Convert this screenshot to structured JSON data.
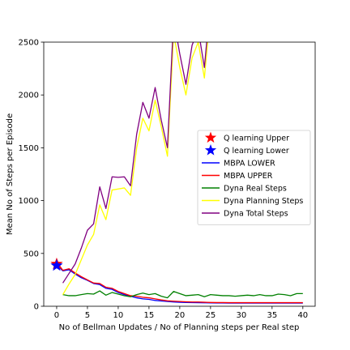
{
  "chart_data": {
    "type": "line",
    "xlabel": "No of Bellman Updates / No of Planning steps per Real step",
    "ylabel": "Mean No of Steps per Episode",
    "xlim": [
      -2.1,
      42.0
    ],
    "ylim": [
      0,
      2500
    ],
    "xticks": [
      0,
      5,
      10,
      15,
      20,
      25,
      30,
      35,
      40
    ],
    "yticks": [
      0,
      500,
      1000,
      1500,
      2000,
      2500
    ],
    "grid": false,
    "legend_position": "center-right",
    "series": [
      {
        "name": "Q learning Upper",
        "kind": "marker",
        "marker": "star",
        "color": "#ff0000",
        "x": [
          0
        ],
        "y": [
          400
        ]
      },
      {
        "name": "Q learning Lower",
        "kind": "marker",
        "marker": "star",
        "color": "#0000ff",
        "x": [
          0
        ],
        "y": [
          385
        ]
      },
      {
        "name": "MBPA LOWER",
        "kind": "line",
        "color": "#0000ff",
        "x": [
          0,
          1,
          2,
          3,
          4,
          5,
          6,
          7,
          8,
          9,
          10,
          11,
          12,
          13,
          14,
          15,
          16,
          17,
          18,
          19,
          20,
          21,
          22,
          23,
          24,
          25,
          26,
          27,
          28,
          29,
          30,
          31,
          32,
          33,
          34,
          35,
          36,
          37,
          38,
          39,
          40
        ],
        "y": [
          390,
          335,
          345,
          305,
          270,
          245,
          215,
          205,
          170,
          160,
          130,
          110,
          95,
          80,
          70,
          65,
          55,
          50,
          45,
          40,
          38,
          36,
          35,
          34,
          33,
          32,
          31,
          31,
          30,
          30,
          30,
          30,
          30,
          30,
          30,
          30,
          30,
          30,
          30,
          30,
          30
        ]
      },
      {
        "name": "MBPA UPPER",
        "kind": "line",
        "color": "#ff0000",
        "x": [
          0,
          1,
          2,
          3,
          4,
          5,
          6,
          7,
          8,
          9,
          10,
          11,
          12,
          13,
          14,
          15,
          16,
          17,
          18,
          19,
          20,
          21,
          22,
          23,
          24,
          25,
          26,
          27,
          28,
          29,
          30,
          31,
          32,
          33,
          34,
          35,
          36,
          37,
          38,
          39,
          40
        ],
        "y": [
          420,
          340,
          355,
          315,
          280,
          250,
          220,
          215,
          180,
          170,
          140,
          120,
          100,
          95,
          85,
          80,
          70,
          60,
          52,
          48,
          45,
          42,
          40,
          40,
          38,
          36,
          35,
          35,
          34,
          34,
          34,
          34,
          34,
          34,
          34,
          34,
          34,
          34,
          34,
          34,
          34
        ]
      },
      {
        "name": "Dyna Real Steps",
        "kind": "line",
        "color": "#008000",
        "x": [
          1,
          2,
          3,
          4,
          5,
          6,
          7,
          8,
          9,
          10,
          11,
          12,
          13,
          14,
          15,
          16,
          17,
          18,
          19,
          20,
          21,
          22,
          23,
          24,
          25,
          26,
          27,
          28,
          29,
          30,
          31,
          32,
          33,
          34,
          35,
          36,
          37,
          38,
          39,
          40
        ],
        "y": [
          110,
          100,
          100,
          110,
          120,
          115,
          145,
          105,
          130,
          115,
          100,
          90,
          110,
          125,
          110,
          120,
          95,
          80,
          140,
          120,
          100,
          105,
          110,
          90,
          110,
          105,
          100,
          100,
          95,
          100,
          105,
          100,
          110,
          100,
          100,
          115,
          110,
          100,
          120,
          120
        ]
      },
      {
        "name": "Dyna Planning Steps",
        "kind": "line",
        "color": "#ffff00",
        "x": [
          1,
          2,
          3,
          4,
          5,
          6,
          7,
          8,
          9,
          10,
          11,
          12,
          13,
          14,
          15,
          16,
          17,
          18,
          19,
          20,
          21,
          22,
          23,
          24,
          25
        ],
        "y": [
          110,
          210,
          300,
          440,
          580,
          680,
          960,
          820,
          1100,
          1110,
          1120,
          1050,
          1500,
          1780,
          1660,
          1950,
          1700,
          1420,
          2580,
          2260,
          2000,
          2350,
          2500,
          2160,
          2800
        ]
      },
      {
        "name": "Dyna Total Steps",
        "kind": "line",
        "color": "#800080",
        "x": [
          1,
          2,
          3,
          4,
          5,
          6,
          7,
          8,
          9,
          10,
          11,
          12,
          13,
          14,
          15,
          16,
          17,
          18,
          19,
          20,
          21,
          22,
          23,
          24,
          25
        ],
        "y": [
          220,
          310,
          400,
          550,
          720,
          780,
          1130,
          925,
          1225,
          1220,
          1225,
          1140,
          1630,
          1930,
          1780,
          2070,
          1760,
          1500,
          2720,
          2390,
          2100,
          2470,
          2620,
          2260,
          2900
        ]
      }
    ]
  }
}
